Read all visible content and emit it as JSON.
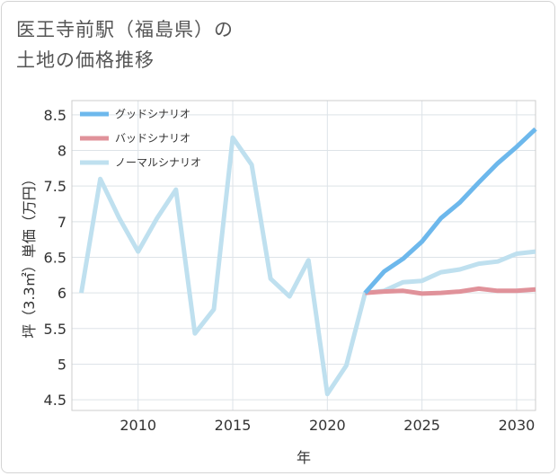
{
  "title_lines": [
    "医王寺前駅（福島県）の",
    "土地の価格推移"
  ],
  "chart_data": {
    "type": "line",
    "title": "医王寺前駅（福島県）の土地の価格推移",
    "xlabel": "年",
    "ylabel": "坪（3.3㎡）単価（万円）",
    "xlim": [
      2006.5,
      2031
    ],
    "ylim": [
      4.35,
      8.7
    ],
    "xticks": [
      2010,
      2015,
      2020,
      2025,
      2030
    ],
    "xtick_labels": [
      "2010",
      "2015",
      "2020",
      "2025",
      "2030"
    ],
    "yticks": [
      4.5,
      5,
      5.5,
      6,
      6.5,
      7,
      7.5,
      8,
      8.5
    ],
    "ytick_labels": [
      "4.5",
      "5",
      "5.5",
      "6",
      "6.5",
      "7",
      "7.5",
      "8",
      "8.5"
    ],
    "grid": true,
    "legend_position": "top-left",
    "series": [
      {
        "name": "グッドシナリオ",
        "color": "#6db8ec",
        "x": [
          2022,
          2023,
          2024,
          2025,
          2026,
          2027,
          2028,
          2029,
          2030,
          2031
        ],
        "y": [
          6.0,
          6.3,
          6.48,
          6.72,
          7.05,
          7.27,
          7.55,
          7.82,
          8.05,
          8.3
        ]
      },
      {
        "name": "バッドシナリオ",
        "color": "#e0929a",
        "x": [
          2022,
          2023,
          2024,
          2025,
          2026,
          2027,
          2028,
          2029,
          2030,
          2031
        ],
        "y": [
          6.0,
          6.02,
          6.03,
          5.99,
          6.0,
          6.02,
          6.06,
          6.03,
          6.03,
          6.05
        ]
      },
      {
        "name": "ノーマルシナリオ",
        "color": "#bfe0ef",
        "x": [
          2007,
          2008,
          2009,
          2010,
          2011,
          2012,
          2013,
          2014,
          2015,
          2016,
          2017,
          2018,
          2019,
          2020,
          2021,
          2022,
          2023,
          2024,
          2025,
          2026,
          2027,
          2028,
          2029,
          2030,
          2031
        ],
        "y": [
          6.0,
          7.6,
          7.05,
          6.58,
          7.05,
          7.45,
          5.43,
          5.77,
          8.18,
          7.8,
          6.2,
          5.95,
          6.46,
          4.58,
          4.98,
          6.0,
          6.03,
          6.15,
          6.17,
          6.29,
          6.33,
          6.41,
          6.44,
          6.55,
          6.58
        ]
      }
    ]
  }
}
